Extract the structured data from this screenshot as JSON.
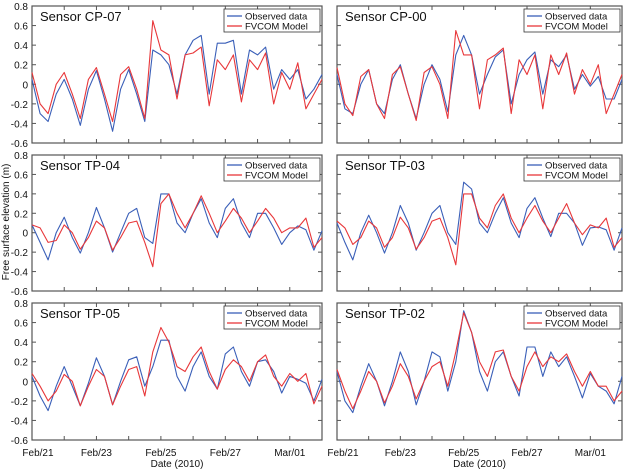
{
  "chart_data": [
    {
      "type": "line",
      "title": "Sensor CP-07",
      "ylim": [
        -0.6,
        0.8
      ],
      "yticks": [
        "0.8",
        "0.6",
        "0.4",
        "0.2",
        "0",
        "-0.2",
        "-0.4",
        "-0.6"
      ],
      "series": [
        {
          "name": "Observed data",
          "color": "#3a5fb8",
          "values": [
            0.05,
            -0.3,
            -0.38,
            -0.1,
            0.05,
            -0.15,
            -0.42,
            -0.05,
            0.14,
            -0.15,
            -0.48,
            -0.05,
            0.15,
            -0.1,
            -0.38,
            0.35,
            0.3,
            0.2,
            -0.1,
            0.3,
            0.45,
            0.5,
            -0.1,
            0.42,
            0.42,
            0.45,
            -0.1,
            0.35,
            0.3,
            0.38,
            -0.05,
            0.15,
            0.05,
            0.15,
            -0.15,
            -0.05,
            0.1
          ]
        },
        {
          "name": "FVCOM Model",
          "color": "#e8373a",
          "values": [
            0.12,
            -0.2,
            -0.3,
            0.0,
            0.12,
            -0.1,
            -0.35,
            0.05,
            0.17,
            -0.1,
            -0.38,
            0.1,
            0.18,
            -0.05,
            -0.35,
            0.65,
            0.35,
            0.3,
            -0.15,
            0.3,
            0.32,
            0.38,
            -0.22,
            0.25,
            0.15,
            0.3,
            -0.18,
            0.25,
            0.15,
            0.32,
            -0.2,
            0.12,
            -0.05,
            0.22,
            -0.25,
            -0.1,
            0.05
          ]
        }
      ]
    },
    {
      "type": "line",
      "title": "Sensor CP-00",
      "ylim": [
        -0.6,
        0.8
      ],
      "series": [
        {
          "name": "Observed data",
          "color": "#3a5fb8",
          "values": [
            0.1,
            -0.25,
            -0.3,
            0.0,
            0.15,
            -0.2,
            -0.3,
            0.05,
            0.2,
            -0.1,
            -0.35,
            0.0,
            0.2,
            0.05,
            -0.28,
            0.3,
            0.5,
            0.3,
            -0.1,
            0.1,
            0.28,
            0.35,
            -0.2,
            0.1,
            0.25,
            0.33,
            -0.1,
            0.25,
            0.18,
            0.3,
            -0.05,
            0.1,
            -0.02,
            0.08,
            -0.15,
            -0.15,
            0.05
          ]
        },
        {
          "name": "FVCOM Model",
          "color": "#e8373a",
          "values": [
            0.17,
            -0.2,
            -0.32,
            0.08,
            0.15,
            -0.2,
            -0.35,
            0.1,
            0.18,
            -0.1,
            -0.37,
            0.12,
            0.18,
            0.0,
            -0.35,
            0.55,
            0.3,
            0.3,
            -0.25,
            0.25,
            0.3,
            0.37,
            -0.3,
            0.25,
            0.1,
            0.3,
            -0.25,
            0.3,
            0.1,
            0.32,
            -0.1,
            0.15,
            0.0,
            0.2,
            -0.3,
            -0.1,
            0.1
          ]
        }
      ]
    },
    {
      "type": "line",
      "title": "Sensor TP-04",
      "ylim": [
        -0.6,
        0.8
      ],
      "series": [
        {
          "name": "Observed data",
          "color": "#3a5fb8",
          "values": [
            0.08,
            -0.1,
            -0.28,
            0.0,
            0.16,
            -0.05,
            -0.21,
            0.0,
            0.26,
            0.05,
            -0.2,
            0.0,
            0.2,
            0.25,
            -0.05,
            -0.11,
            0.4,
            0.4,
            0.1,
            0.0,
            0.2,
            0.35,
            0.1,
            -0.05,
            0.25,
            0.35,
            0.1,
            -0.05,
            0.2,
            0.2,
            0.05,
            -0.12,
            0.0,
            0.07,
            0.03,
            -0.18,
            0.02
          ]
        },
        {
          "name": "FVCOM Model",
          "color": "#e8373a",
          "values": [
            0.08,
            0.05,
            -0.1,
            -0.08,
            0.08,
            0.0,
            -0.17,
            -0.05,
            0.12,
            0.05,
            -0.18,
            -0.05,
            0.1,
            0.12,
            -0.1,
            -0.35,
            0.3,
            0.4,
            0.2,
            0.05,
            0.2,
            0.38,
            0.2,
            0.0,
            0.12,
            0.25,
            0.15,
            0.0,
            0.12,
            0.25,
            0.15,
            0.0,
            0.05,
            0.05,
            0.15,
            -0.15,
            -0.05
          ]
        }
      ]
    },
    {
      "type": "line",
      "title": "Sensor TP-03",
      "ylim": [
        -0.6,
        0.8
      ],
      "series": [
        {
          "name": "Observed data",
          "color": "#3a5fb8",
          "values": [
            0.1,
            -0.1,
            -0.28,
            0.0,
            0.18,
            0.0,
            -0.21,
            0.0,
            0.28,
            0.1,
            -0.18,
            0.0,
            0.2,
            0.28,
            0.0,
            -0.12,
            0.52,
            0.45,
            0.1,
            0.0,
            0.2,
            0.36,
            0.1,
            -0.05,
            0.25,
            0.36,
            0.15,
            -0.04,
            0.2,
            0.2,
            0.1,
            -0.13,
            0.05,
            0.06,
            0.03,
            -0.18,
            0.05
          ]
        },
        {
          "name": "FVCOM Model",
          "color": "#e8373a",
          "values": [
            0.12,
            0.05,
            -0.12,
            -0.05,
            0.12,
            0.05,
            -0.15,
            -0.05,
            0.16,
            0.05,
            -0.17,
            -0.05,
            0.12,
            0.15,
            -0.05,
            -0.33,
            0.4,
            0.4,
            0.15,
            0.05,
            0.28,
            0.4,
            0.15,
            0.0,
            0.15,
            0.28,
            0.12,
            0.0,
            0.15,
            0.3,
            0.1,
            -0.02,
            0.08,
            0.05,
            0.15,
            -0.15,
            -0.05
          ]
        }
      ]
    },
    {
      "type": "line",
      "title": "Sensor TP-05",
      "ylim": [
        -0.6,
        0.8
      ],
      "series": [
        {
          "name": "Observed data",
          "color": "#3a5fb8",
          "values": [
            0.05,
            -0.15,
            -0.3,
            -0.05,
            0.15,
            -0.05,
            -0.25,
            -0.02,
            0.24,
            0.05,
            -0.24,
            0.0,
            0.22,
            0.25,
            -0.05,
            0.15,
            0.42,
            0.42,
            0.05,
            -0.1,
            0.15,
            0.3,
            0.05,
            -0.08,
            0.28,
            0.35,
            0.1,
            -0.05,
            0.2,
            0.22,
            0.1,
            -0.12,
            0.05,
            0.02,
            -0.02,
            -0.2,
            0.02
          ]
        },
        {
          "name": "FVCOM Model",
          "color": "#e8373a",
          "values": [
            0.08,
            -0.05,
            -0.2,
            -0.1,
            0.07,
            0.0,
            -0.25,
            -0.05,
            0.12,
            0.05,
            -0.24,
            -0.05,
            0.12,
            0.15,
            -0.15,
            0.3,
            0.55,
            0.4,
            0.15,
            0.1,
            0.25,
            0.35,
            0.1,
            -0.08,
            0.12,
            0.22,
            0.15,
            0.0,
            0.2,
            0.27,
            0.05,
            -0.05,
            0.08,
            0.0,
            0.08,
            -0.23,
            -0.05
          ]
        }
      ]
    },
    {
      "type": "line",
      "title": "Sensor TP-02",
      "ylim": [
        -0.6,
        0.8
      ],
      "series": [
        {
          "name": "Observed data",
          "color": "#3a5fb8",
          "values": [
            0.1,
            -0.2,
            -0.32,
            -0.05,
            0.18,
            0.0,
            -0.25,
            0.0,
            0.3,
            0.1,
            -0.24,
            0.0,
            0.3,
            0.25,
            -0.1,
            0.2,
            0.72,
            0.5,
            0.1,
            -0.1,
            0.2,
            0.3,
            0.05,
            -0.15,
            0.35,
            0.35,
            0.05,
            0.3,
            0.15,
            0.25,
            0.05,
            -0.17,
            0.08,
            -0.05,
            -0.1,
            -0.23,
            0.05
          ]
        },
        {
          "name": "FVCOM Model",
          "color": "#e8373a",
          "values": [
            0.12,
            -0.1,
            -0.28,
            -0.1,
            0.1,
            0.0,
            -0.22,
            -0.05,
            0.18,
            0.05,
            -0.18,
            0.0,
            0.15,
            0.2,
            -0.05,
            0.3,
            0.7,
            0.5,
            0.2,
            0.05,
            0.3,
            0.32,
            0.05,
            -0.1,
            0.15,
            0.3,
            0.15,
            0.25,
            0.2,
            0.28,
            0.1,
            -0.05,
            0.1,
            -0.05,
            -0.05,
            -0.2,
            -0.1
          ]
        }
      ]
    }
  ],
  "x": [
    "Feb/21 00:00",
    "Feb/21 06:00",
    "Feb/21 12:00",
    "Feb/21 18:00",
    "Feb/22 00:00",
    "Feb/22 06:00",
    "Feb/22 12:00",
    "Feb/22 18:00",
    "Feb/23 00:00",
    "Feb/23 06:00",
    "Feb/23 12:00",
    "Feb/23 18:00",
    "Feb/24 00:00",
    "Feb/24 06:00",
    "Feb/24 12:00",
    "Feb/24 18:00",
    "Feb/25 00:00",
    "Feb/25 06:00",
    "Feb/25 12:00",
    "Feb/25 18:00",
    "Feb/26 00:00",
    "Feb/26 06:00",
    "Feb/26 12:00",
    "Feb/26 18:00",
    "Feb/27 00:00",
    "Feb/27 06:00",
    "Feb/27 12:00",
    "Feb/27 18:00",
    "Feb/28 00:00",
    "Feb/28 06:00",
    "Feb/28 12:00",
    "Feb/28 18:00",
    "Mar/01 00:00",
    "Mar/01 06:00",
    "Mar/01 12:00",
    "Mar/01 18:00",
    "Mar/02 00:00"
  ],
  "xticks": [
    "Feb/21",
    "Feb/23",
    "Feb/25",
    "Feb/27",
    "Mar/01"
  ],
  "xlabel": "Date (2010)",
  "ylabel": "Free surface elevation (m)",
  "legend": [
    "Observed data",
    "FVCOM Model"
  ],
  "legend_placement": "top-right",
  "grid": false
}
